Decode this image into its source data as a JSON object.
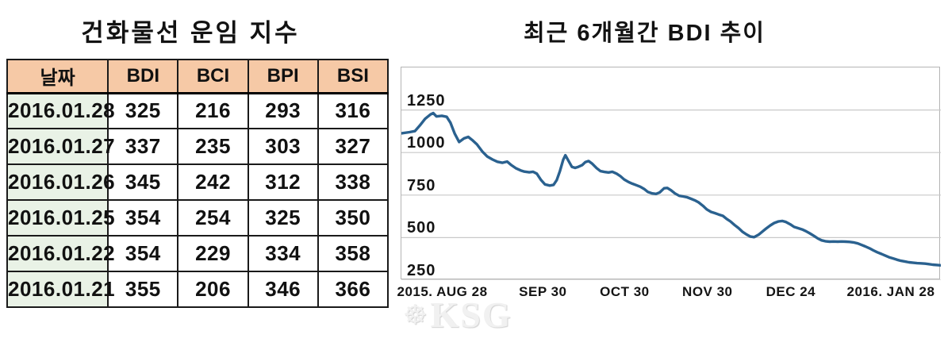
{
  "colors": {
    "header_bg": "#f6c9a6",
    "date_col_bg": "#e9f2e6",
    "table_border": "#1a1a1a",
    "line": "#2a618f",
    "grid": "#c9c9c9",
    "plot_border": "#b5b5b5"
  },
  "watermark": {
    "text": "KSG",
    "badge_icon": "ship-wheel"
  },
  "chart_data": [
    {
      "type": "table",
      "title": "건화물선 운임 지수",
      "columns": [
        "날짜",
        "BDI",
        "BCI",
        "BPI",
        "BSI"
      ],
      "rows": [
        [
          "2016.01.28",
          325,
          216,
          293,
          316
        ],
        [
          "2016.01.27",
          337,
          235,
          303,
          327
        ],
        [
          "2016.01.26",
          345,
          242,
          312,
          338
        ],
        [
          "2016.01.25",
          354,
          254,
          325,
          350
        ],
        [
          "2016.01.22",
          354,
          229,
          334,
          358
        ],
        [
          "2016.01.21",
          355,
          206,
          346,
          366
        ]
      ]
    },
    {
      "type": "line",
      "title": "최근 6개월간 BDI 추이",
      "grid": true,
      "legend": "none",
      "ylim": [
        250,
        1500
      ],
      "y_ticks": [
        1250,
        1000,
        750,
        500,
        250
      ],
      "x_tick_labels": [
        "2015. AUG 28",
        "SEP 30",
        "OCT 30",
        "NOV 30",
        "DEC 24",
        "2016. JAN 28"
      ],
      "x_tick_pos_pct": [
        7.6,
        26.3,
        41.5,
        56.9,
        72.4,
        91.0
      ],
      "series": [
        {
          "name": "BDI",
          "points": [
            [
              0,
              1113
            ],
            [
              1.5,
              1120
            ],
            [
              2.5,
              1126
            ],
            [
              3.4,
              1158
            ],
            [
              4.4,
              1198
            ],
            [
              5.4,
              1224
            ],
            [
              5.9,
              1232
            ],
            [
              6.5,
              1212
            ],
            [
              7.5,
              1216
            ],
            [
              8.4,
              1210
            ],
            [
              9.1,
              1175
            ],
            [
              9.9,
              1110
            ],
            [
              10.7,
              1062
            ],
            [
              11.6,
              1083
            ],
            [
              12.4,
              1092
            ],
            [
              13.1,
              1074
            ],
            [
              14,
              1048
            ],
            [
              15,
              1006
            ],
            [
              15.9,
              977
            ],
            [
              16.9,
              959
            ],
            [
              17.8,
              946
            ],
            [
              18.7,
              940
            ],
            [
              19.6,
              947
            ],
            [
              20.3,
              928
            ],
            [
              21.2,
              908
            ],
            [
              22.1,
              895
            ],
            [
              22.8,
              888
            ],
            [
              23.7,
              884
            ],
            [
              24.4,
              887
            ],
            [
              25.1,
              876
            ],
            [
              25.9,
              838
            ],
            [
              26.6,
              813
            ],
            [
              27.5,
              806
            ],
            [
              28.2,
              810
            ],
            [
              28.8,
              838
            ],
            [
              29.4,
              892
            ],
            [
              30,
              958
            ],
            [
              30.4,
              984
            ],
            [
              31,
              950
            ],
            [
              31.6,
              916
            ],
            [
              32.2,
              910
            ],
            [
              32.8,
              916
            ],
            [
              33.5,
              926
            ],
            [
              34.1,
              944
            ],
            [
              34.7,
              950
            ],
            [
              35.4,
              934
            ],
            [
              36.2,
              908
            ],
            [
              36.9,
              891
            ],
            [
              37.6,
              886
            ],
            [
              38.4,
              883
            ],
            [
              39.1,
              887
            ],
            [
              39.9,
              876
            ],
            [
              40.6,
              861
            ],
            [
              41.3,
              842
            ],
            [
              42.1,
              827
            ],
            [
              42.8,
              817
            ],
            [
              43.5,
              809
            ],
            [
              44.3,
              799
            ],
            [
              45,
              786
            ],
            [
              45.7,
              768
            ],
            [
              46.5,
              760
            ],
            [
              47.2,
              757
            ],
            [
              47.9,
              766
            ],
            [
              48.7,
              790
            ],
            [
              49.3,
              792
            ],
            [
              50,
              778
            ],
            [
              50.7,
              760
            ],
            [
              51.5,
              746
            ],
            [
              52.2,
              742
            ],
            [
              52.9,
              738
            ],
            [
              53.7,
              728
            ],
            [
              54.4,
              719
            ],
            [
              55.1,
              707
            ],
            [
              55.9,
              687
            ],
            [
              56.6,
              666
            ],
            [
              57.4,
              651
            ],
            [
              58.1,
              644
            ],
            [
              58.8,
              636
            ],
            [
              59.6,
              628
            ],
            [
              60.3,
              610
            ],
            [
              61,
              595
            ],
            [
              61.8,
              573
            ],
            [
              62.5,
              556
            ],
            [
              63.2,
              535
            ],
            [
              64,
              518
            ],
            [
              64.7,
              506
            ],
            [
              65.4,
              503
            ],
            [
              66.2,
              517
            ],
            [
              66.9,
              535
            ],
            [
              67.6,
              553
            ],
            [
              68.4,
              572
            ],
            [
              69.1,
              586
            ],
            [
              69.9,
              595
            ],
            [
              70.6,
              598
            ],
            [
              71.3,
              592
            ],
            [
              72.1,
              578
            ],
            [
              72.8,
              563
            ],
            [
              73.5,
              556
            ],
            [
              74.3,
              548
            ],
            [
              75,
              538
            ],
            [
              75.7,
              525
            ],
            [
              76.5,
              510
            ],
            [
              77.2,
              495
            ],
            [
              77.9,
              484
            ],
            [
              78.7,
              478
            ],
            [
              79.4,
              476
            ],
            [
              80.1,
              477
            ],
            [
              80.9,
              476
            ],
            [
              81.6,
              477
            ],
            [
              82.4,
              476
            ],
            [
              83.1,
              475
            ],
            [
              83.8,
              472
            ],
            [
              84.6,
              466
            ],
            [
              85.3,
              457
            ],
            [
              86,
              448
            ],
            [
              86.8,
              437
            ],
            [
              87.5,
              425
            ],
            [
              88.2,
              414
            ],
            [
              89,
              404
            ],
            [
              89.7,
              394
            ],
            [
              90.4,
              385
            ],
            [
              91.2,
              377
            ],
            [
              91.9,
              370
            ],
            [
              92.6,
              364
            ],
            [
              93.4,
              359
            ],
            [
              94.1,
              355
            ],
            [
              94.9,
              352
            ],
            [
              95.6,
              350
            ],
            [
              96.3,
              349
            ],
            [
              97.1,
              347
            ],
            [
              97.8,
              344
            ],
            [
              98.5,
              341
            ],
            [
              100,
              337
            ]
          ]
        }
      ]
    }
  ]
}
